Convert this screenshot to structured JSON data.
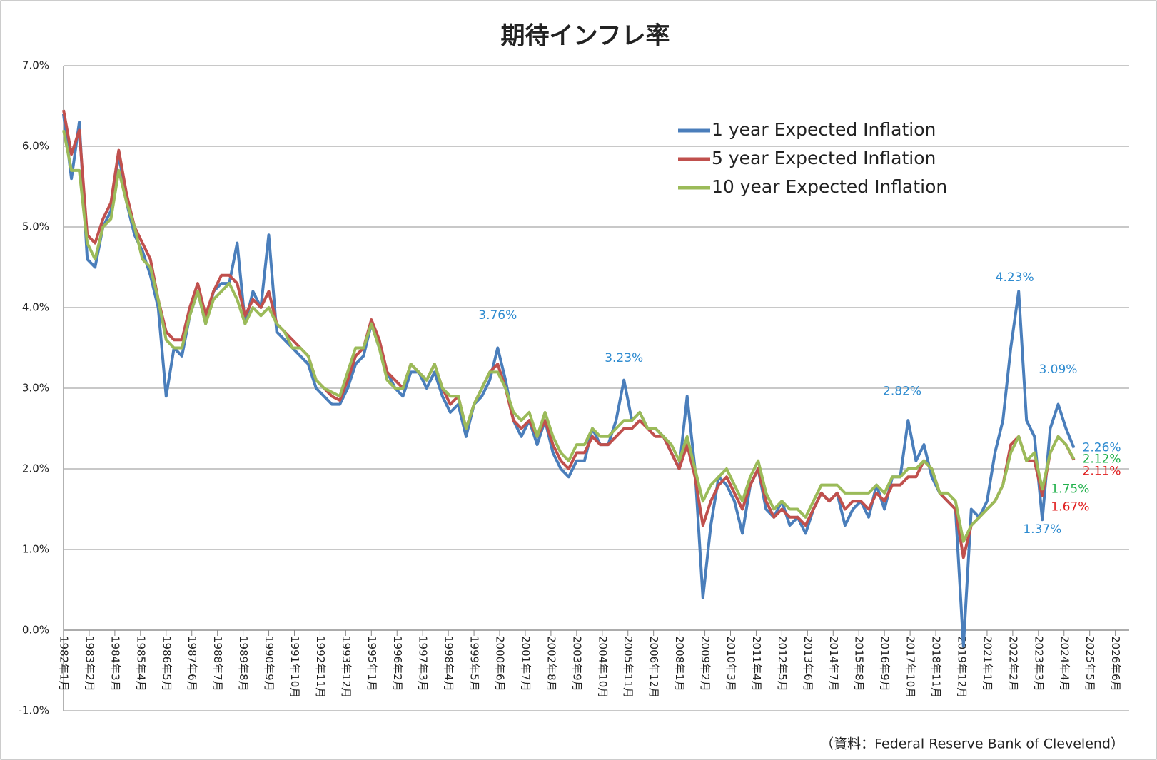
{
  "chart_data": {
    "type": "line",
    "title": "期待インフレ率",
    "footnote": "（資料：Federal Reserve Bank of Clevelend）",
    "legend": "upper right",
    "grid": true,
    "ylim": [
      -1,
      7
    ],
    "yticks": [
      {
        "value": 7,
        "label": "7.0%"
      },
      {
        "value": 6,
        "label": "6.0%"
      },
      {
        "value": 5,
        "label": "5.0%"
      },
      {
        "value": 4,
        "label": "4.0%"
      },
      {
        "value": 3,
        "label": "3.0%"
      },
      {
        "value": 2,
        "label": "2.0%"
      },
      {
        "value": 1,
        "label": "1.0%"
      },
      {
        "value": 0,
        "label": "0.0%"
      },
      {
        "value": -1,
        "label": "-1.0%"
      }
    ],
    "xlim": [
      "1982-01",
      "2027-01"
    ],
    "xticks": [
      {
        "value": "1982-01",
        "label": "1982年1月"
      },
      {
        "value": "1983-02",
        "label": "1983年2月"
      },
      {
        "value": "1984-03",
        "label": "1984年3月"
      },
      {
        "value": "1985-04",
        "label": "1985年4月"
      },
      {
        "value": "1986-05",
        "label": "1986年5月"
      },
      {
        "value": "1987-06",
        "label": "1987年6月"
      },
      {
        "value": "1988-07",
        "label": "1988年7月"
      },
      {
        "value": "1989-08",
        "label": "1989年8月"
      },
      {
        "value": "1990-09",
        "label": "1990年9月"
      },
      {
        "value": "1991-10",
        "label": "1991年10月"
      },
      {
        "value": "1992-11",
        "label": "1992年11月"
      },
      {
        "value": "1993-12",
        "label": "1993年12月"
      },
      {
        "value": "1995-01",
        "label": "1995年1月"
      },
      {
        "value": "1996-02",
        "label": "1996年2月"
      },
      {
        "value": "1997-03",
        "label": "1997年3月"
      },
      {
        "value": "1998-04",
        "label": "1998年4月"
      },
      {
        "value": "1999-05",
        "label": "1999年5月"
      },
      {
        "value": "2000-06",
        "label": "2000年6月"
      },
      {
        "value": "2001-07",
        "label": "2001年7月"
      },
      {
        "value": "2002-08",
        "label": "2002年8月"
      },
      {
        "value": "2003-09",
        "label": "2003年9月"
      },
      {
        "value": "2004-10",
        "label": "2004年10月"
      },
      {
        "value": "2005-11",
        "label": "2005年11月"
      },
      {
        "value": "2006-12",
        "label": "2006年12月"
      },
      {
        "value": "2008-01",
        "label": "2008年1月"
      },
      {
        "value": "2009-02",
        "label": "2009年2月"
      },
      {
        "value": "2010-03",
        "label": "2010年3月"
      },
      {
        "value": "2011-04",
        "label": "2011年4月"
      },
      {
        "value": "2012-05",
        "label": "2012年5月"
      },
      {
        "value": "2013-06",
        "label": "2013年6月"
      },
      {
        "value": "2014-07",
        "label": "2014年7月"
      },
      {
        "value": "2015-08",
        "label": "2015年8月"
      },
      {
        "value": "2016-09",
        "label": "2016年9月"
      },
      {
        "value": "2017-10",
        "label": "2017年10月"
      },
      {
        "value": "2018-11",
        "label": "2018年11月"
      },
      {
        "value": "2019-12",
        "label": "2019年12月"
      },
      {
        "value": "2021-01",
        "label": "2021年1月"
      },
      {
        "value": "2022-02",
        "label": "2022年2月"
      },
      {
        "value": "2023-03",
        "label": "2023年3月"
      },
      {
        "value": "2024-04",
        "label": "2024年4月"
      },
      {
        "value": "2025-05",
        "label": "2025年5月"
      },
      {
        "value": "2026-06",
        "label": "2026年6月"
      }
    ],
    "x": [
      "1982-01",
      "1982-05",
      "1982-09",
      "1983-01",
      "1983-05",
      "1983-09",
      "1984-01",
      "1984-05",
      "1984-09",
      "1985-01",
      "1985-05",
      "1985-09",
      "1986-01",
      "1986-05",
      "1986-09",
      "1987-01",
      "1987-05",
      "1987-09",
      "1988-01",
      "1988-05",
      "1988-09",
      "1989-01",
      "1989-05",
      "1989-09",
      "1990-01",
      "1990-05",
      "1990-09",
      "1991-01",
      "1991-05",
      "1991-09",
      "1992-01",
      "1992-05",
      "1992-09",
      "1993-01",
      "1993-05",
      "1993-09",
      "1994-01",
      "1994-05",
      "1994-09",
      "1995-01",
      "1995-05",
      "1995-09",
      "1996-01",
      "1996-05",
      "1996-09",
      "1997-01",
      "1997-05",
      "1997-09",
      "1998-01",
      "1998-05",
      "1998-09",
      "1999-01",
      "1999-05",
      "1999-09",
      "2000-01",
      "2000-05",
      "2000-09",
      "2001-01",
      "2001-05",
      "2001-09",
      "2002-01",
      "2002-05",
      "2002-09",
      "2003-01",
      "2003-05",
      "2003-09",
      "2004-01",
      "2004-05",
      "2004-09",
      "2005-01",
      "2005-05",
      "2005-09",
      "2006-01",
      "2006-05",
      "2006-09",
      "2007-01",
      "2007-05",
      "2007-09",
      "2008-01",
      "2008-05",
      "2008-09",
      "2009-01",
      "2009-05",
      "2009-09",
      "2010-01",
      "2010-05",
      "2010-09",
      "2011-01",
      "2011-05",
      "2011-09",
      "2012-01",
      "2012-05",
      "2012-09",
      "2013-01",
      "2013-05",
      "2013-09",
      "2014-01",
      "2014-05",
      "2014-09",
      "2015-01",
      "2015-05",
      "2015-09",
      "2016-01",
      "2016-05",
      "2016-09",
      "2017-01",
      "2017-05",
      "2017-09",
      "2018-01",
      "2018-05",
      "2018-09",
      "2019-01",
      "2019-05",
      "2019-09",
      "2020-01",
      "2020-05",
      "2020-09",
      "2021-01",
      "2021-05",
      "2021-09",
      "2022-01",
      "2022-05",
      "2022-09",
      "2023-01",
      "2023-05",
      "2023-09",
      "2024-01",
      "2024-05",
      "2024-09"
    ],
    "series": [
      {
        "name": "1 year Expected Inflation",
        "color": "#4a7ebb",
        "values": [
          6.4,
          5.6,
          6.3,
          4.6,
          4.5,
          5.0,
          5.2,
          5.9,
          5.3,
          4.9,
          4.7,
          4.4,
          4.0,
          2.9,
          3.5,
          3.4,
          3.9,
          4.2,
          3.8,
          4.2,
          4.3,
          4.3,
          4.8,
          3.8,
          4.2,
          4.0,
          4.9,
          3.7,
          3.6,
          3.5,
          3.4,
          3.3,
          3.0,
          2.9,
          2.8,
          2.8,
          3.0,
          3.3,
          3.4,
          3.8,
          3.5,
          3.2,
          3.0,
          2.9,
          3.2,
          3.2,
          3.0,
          3.2,
          2.9,
          2.7,
          2.8,
          2.4,
          2.8,
          2.9,
          3.1,
          3.5,
          3.1,
          2.6,
          2.4,
          2.6,
          2.3,
          2.6,
          2.2,
          2.0,
          1.9,
          2.1,
          2.1,
          2.5,
          2.3,
          2.3,
          2.6,
          3.1,
          2.6,
          2.7,
          2.5,
          2.5,
          2.4,
          2.2,
          2.0,
          2.9,
          2.0,
          0.4,
          1.3,
          1.9,
          1.8,
          1.6,
          1.2,
          1.8,
          2.0,
          1.5,
          1.4,
          1.6,
          1.3,
          1.4,
          1.2,
          1.5,
          1.7,
          1.6,
          1.7,
          1.3,
          1.5,
          1.6,
          1.4,
          1.8,
          1.5,
          1.9,
          1.9,
          2.6,
          2.1,
          2.3,
          1.9,
          1.7,
          1.6,
          1.5,
          -0.2,
          1.5,
          1.4,
          1.6,
          2.2,
          2.6,
          3.5,
          4.2,
          2.6,
          2.4,
          1.37,
          2.5,
          2.8,
          2.5,
          2.26
        ]
      },
      {
        "name": "5 year Expected Inflation",
        "color": "#c0504d",
        "values": [
          6.45,
          5.9,
          6.2,
          4.9,
          4.8,
          5.1,
          5.3,
          5.95,
          5.4,
          5.0,
          4.8,
          4.6,
          4.1,
          3.7,
          3.6,
          3.6,
          4.0,
          4.3,
          3.9,
          4.2,
          4.4,
          4.4,
          4.3,
          3.9,
          4.1,
          4.0,
          4.2,
          3.8,
          3.7,
          3.6,
          3.5,
          3.4,
          3.1,
          3.0,
          2.9,
          2.85,
          3.1,
          3.4,
          3.5,
          3.85,
          3.6,
          3.2,
          3.1,
          3.0,
          3.3,
          3.2,
          3.1,
          3.3,
          3.0,
          2.8,
          2.9,
          2.5,
          2.8,
          3.0,
          3.2,
          3.3,
          3.0,
          2.6,
          2.5,
          2.6,
          2.4,
          2.6,
          2.3,
          2.1,
          2.0,
          2.2,
          2.2,
          2.4,
          2.3,
          2.3,
          2.4,
          2.5,
          2.5,
          2.6,
          2.5,
          2.4,
          2.4,
          2.2,
          2.0,
          2.3,
          1.9,
          1.3,
          1.6,
          1.8,
          1.9,
          1.7,
          1.5,
          1.8,
          2.0,
          1.6,
          1.4,
          1.5,
          1.4,
          1.4,
          1.3,
          1.5,
          1.7,
          1.6,
          1.7,
          1.5,
          1.6,
          1.6,
          1.5,
          1.7,
          1.6,
          1.8,
          1.8,
          1.9,
          1.9,
          2.1,
          2.0,
          1.7,
          1.6,
          1.5,
          0.9,
          1.3,
          1.4,
          1.5,
          1.6,
          1.8,
          2.3,
          2.4,
          2.1,
          2.1,
          1.67,
          2.2,
          2.4,
          2.3,
          2.11
        ]
      },
      {
        "name": "10 year Expected Inflation",
        "color": "#9bbb59",
        "values": [
          6.2,
          5.7,
          5.7,
          4.8,
          4.6,
          5.0,
          5.1,
          5.7,
          5.3,
          5.0,
          4.6,
          4.5,
          4.1,
          3.6,
          3.5,
          3.5,
          3.9,
          4.2,
          3.8,
          4.1,
          4.2,
          4.3,
          4.1,
          3.8,
          4.0,
          3.9,
          4.0,
          3.8,
          3.7,
          3.5,
          3.5,
          3.4,
          3.1,
          3.0,
          2.95,
          2.9,
          3.2,
          3.5,
          3.5,
          3.8,
          3.5,
          3.1,
          3.0,
          3.0,
          3.3,
          3.2,
          3.1,
          3.3,
          3.0,
          2.9,
          2.9,
          2.5,
          2.8,
          3.0,
          3.2,
          3.2,
          3.0,
          2.7,
          2.6,
          2.7,
          2.4,
          2.7,
          2.4,
          2.2,
          2.1,
          2.3,
          2.3,
          2.5,
          2.4,
          2.4,
          2.5,
          2.6,
          2.6,
          2.7,
          2.5,
          2.5,
          2.4,
          2.3,
          2.1,
          2.4,
          2.0,
          1.6,
          1.8,
          1.9,
          2.0,
          1.8,
          1.6,
          1.9,
          2.1,
          1.7,
          1.5,
          1.6,
          1.5,
          1.5,
          1.4,
          1.6,
          1.8,
          1.8,
          1.8,
          1.7,
          1.7,
          1.7,
          1.7,
          1.8,
          1.7,
          1.9,
          1.9,
          2.0,
          2.0,
          2.1,
          2.0,
          1.7,
          1.7,
          1.6,
          1.1,
          1.3,
          1.4,
          1.5,
          1.6,
          1.8,
          2.2,
          2.4,
          2.1,
          2.2,
          1.75,
          2.2,
          2.4,
          2.3,
          2.12
        ]
      }
    ],
    "annotations": [
      {
        "text": "3.76%",
        "x": "2000-05",
        "value": 3.76,
        "color": "#2e8bd0",
        "placement": "above"
      },
      {
        "text": "3.23%",
        "x": "2005-09",
        "value": 3.23,
        "color": "#2e8bd0",
        "placement": "above"
      },
      {
        "text": "2.82%",
        "x": "2017-06",
        "value": 2.82,
        "color": "#2e8bd0",
        "placement": "above"
      },
      {
        "text": "4.23%",
        "x": "2022-03",
        "value": 4.23,
        "color": "#2e8bd0",
        "placement": "above"
      },
      {
        "text": "3.09%",
        "x": "2024-01",
        "value": 3.09,
        "color": "#2e8bd0",
        "placement": "above"
      },
      {
        "text": "2.26%",
        "x": "2024-09",
        "value": 2.26,
        "color": "#2e8bd0",
        "placement": "right"
      },
      {
        "text": "2.12%",
        "x": "2024-09",
        "value": 2.12,
        "color": "#22b14c",
        "placement": "right"
      },
      {
        "text": "2.11%",
        "x": "2024-09",
        "value": 2.11,
        "color": "#e02020",
        "placement": "below-right"
      },
      {
        "text": "1.75%",
        "x": "2023-05",
        "value": 1.75,
        "color": "#22b14c",
        "placement": "right"
      },
      {
        "text": "1.67%",
        "x": "2023-05",
        "value": 1.67,
        "color": "#e02020",
        "placement": "below-right"
      },
      {
        "text": "1.37%",
        "x": "2023-05",
        "value": 1.37,
        "color": "#2e8bd0",
        "placement": "below"
      }
    ]
  }
}
